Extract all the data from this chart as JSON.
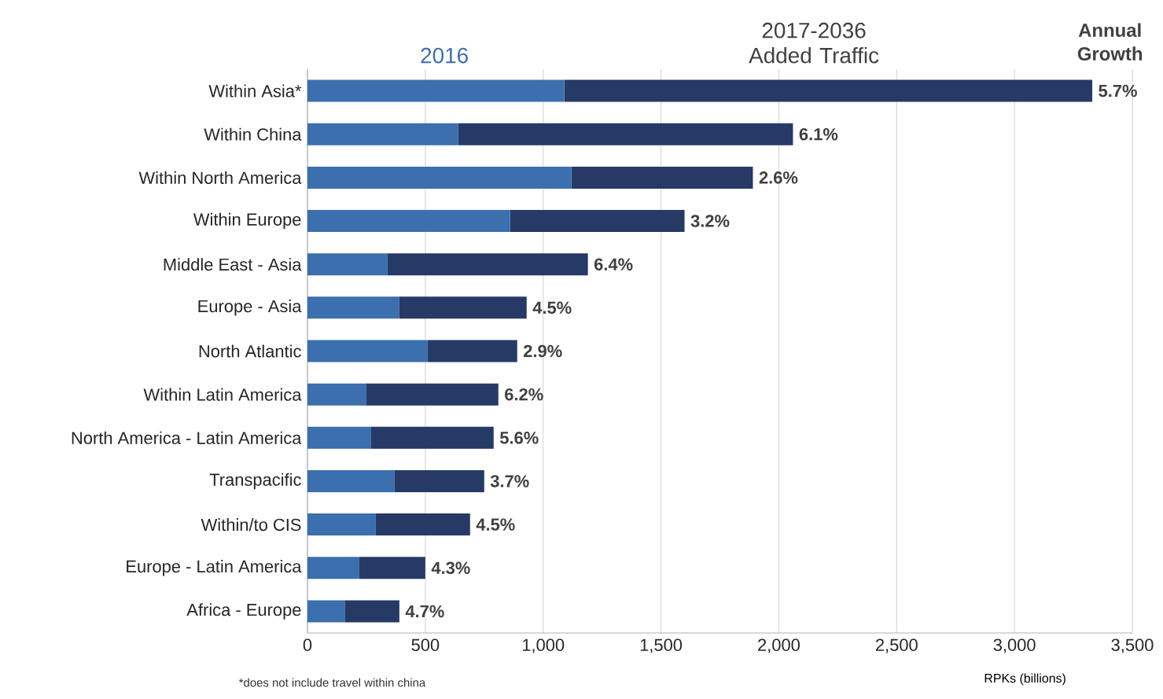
{
  "chart_data": {
    "type": "bar",
    "orientation": "horizontal",
    "stacked": true,
    "categories": [
      "Within Asia*",
      "Within China",
      "Within North America",
      "Within Europe",
      "Middle East - Asia",
      "Europe - Asia",
      "North Atlantic",
      "Within Latin America",
      "North America - Latin America",
      "Transpacific",
      "Within/to CIS",
      "Europe - Latin America",
      "Africa - Europe"
    ],
    "series": [
      {
        "name": "2016",
        "color": "#3b6fae",
        "values": [
          1090,
          640,
          1120,
          860,
          340,
          390,
          510,
          250,
          270,
          370,
          290,
          220,
          160
        ]
      },
      {
        "name": "2017-2036 Added Traffic",
        "color": "#263a66",
        "values": [
          2240,
          1420,
          770,
          740,
          850,
          540,
          380,
          560,
          520,
          380,
          400,
          280,
          230
        ]
      }
    ],
    "xlim": [
      0,
      3500
    ],
    "xticks": [
      0,
      500,
      {
        "value": 1000,
        "label": "1,000"
      },
      {
        "value": 1500,
        "label": "1,500"
      },
      {
        "value": 2000,
        "label": "2,000"
      },
      {
        "value": 2500,
        "label": "2,500"
      },
      {
        "value": 3000,
        "label": "3,000"
      },
      {
        "value": 3500,
        "label": "3,500"
      }
    ],
    "xlabel": "RPKs (billions)",
    "grid": "x",
    "legend": "top",
    "annotations": [
      "Annual Growth",
      "*does not include travel within china",
      {
        "text": "5.7%",
        "x": 3330,
        "y": "Within Asia*"
      },
      {
        "text": "6.1%",
        "x": 2060,
        "y": "Within China"
      },
      {
        "text": "2.6%",
        "x": 1890,
        "y": "Within North America"
      },
      {
        "text": "3.2%",
        "x": 1600,
        "y": "Within Europe"
      },
      {
        "text": "6.4%",
        "x": 1190,
        "y": "Middle East - Asia"
      },
      {
        "text": "4.5%",
        "x": 930,
        "y": "Europe - Asia"
      },
      {
        "text": "2.9%",
        "x": 890,
        "y": "North Atlantic"
      },
      {
        "text": "6.2%",
        "x": 810,
        "y": "Within Latin America"
      },
      {
        "text": "5.6%",
        "x": 790,
        "y": "North America - Latin America"
      },
      {
        "text": "3.7%",
        "x": 750,
        "y": "Transpacific"
      },
      {
        "text": "4.5%",
        "x": 690,
        "y": "Within/to CIS"
      },
      {
        "text": "4.3%",
        "x": 500,
        "y": "Europe - Latin America"
      },
      {
        "text": "4.7%",
        "x": 390,
        "y": "Africa - Europe"
      }
    ]
  }
}
